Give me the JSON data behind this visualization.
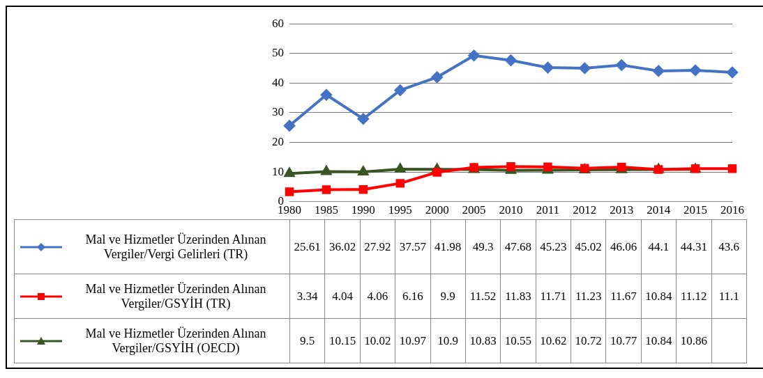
{
  "chart_data": {
    "type": "line",
    "categories": [
      "1980",
      "1985",
      "1990",
      "1995",
      "2000",
      "2005",
      "2010",
      "2011",
      "2012",
      "2013",
      "2014",
      "2015",
      "2016"
    ],
    "series": [
      {
        "name": "Mal ve Hizmetler Üzerinden Alınan Vergiler/Vergi Gelirleri (TR)",
        "color": "#4472c4",
        "marker": "diamond",
        "values": [
          25.61,
          36.02,
          27.92,
          37.57,
          41.98,
          49.3,
          47.68,
          45.23,
          45.02,
          46.06,
          44.1,
          44.31,
          43.6
        ]
      },
      {
        "name": "Mal ve Hizmetler Üzerinden Alınan Vergiler/GSYİH (TR)",
        "color": "#ff0000",
        "marker": "square",
        "values": [
          3.34,
          4.04,
          4.06,
          6.16,
          9.9,
          11.52,
          11.83,
          11.71,
          11.23,
          11.67,
          10.84,
          11.12,
          11.1
        ]
      },
      {
        "name": "Mal ve Hizmetler Üzerinden Alınan Vergiler/GSYİH (OECD)",
        "color": "#375623",
        "marker": "triangle",
        "values": [
          9.5,
          10.15,
          10.02,
          10.97,
          10.9,
          10.83,
          10.55,
          10.62,
          10.72,
          10.77,
          10.84,
          10.86,
          null
        ]
      }
    ],
    "ylim": [
      0,
      60
    ],
    "yticks": [
      0,
      10,
      20,
      30,
      40,
      50,
      60
    ],
    "grid": "y",
    "legend": "bottom",
    "data_labels": true
  }
}
